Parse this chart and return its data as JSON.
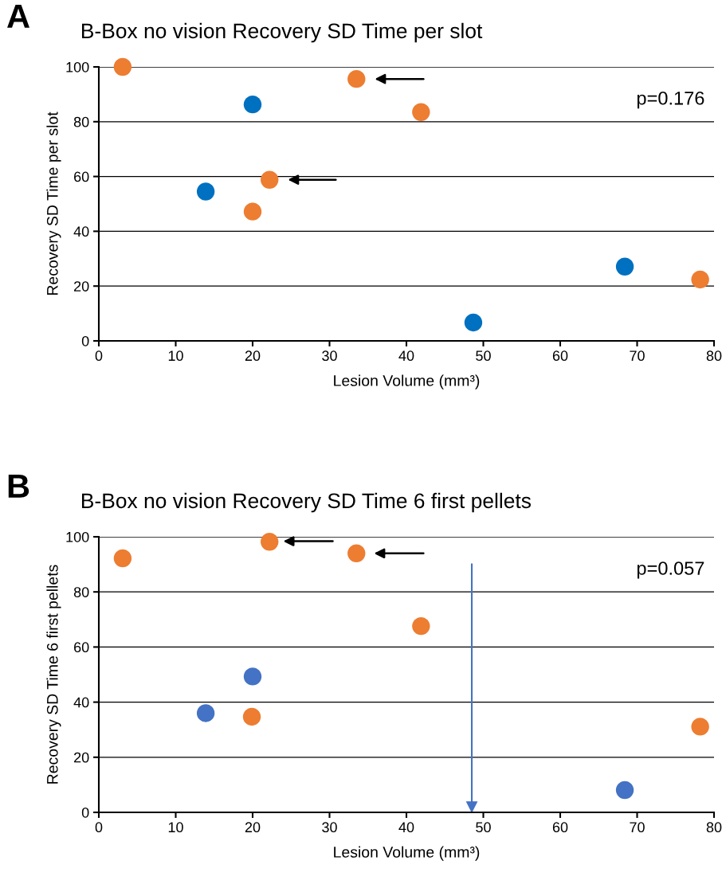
{
  "chart_data": [
    {
      "type": "scatter",
      "title": "B-Box no vision Recovery SD Time per slot",
      "xlabel": "Lesion Volume (mm³)",
      "ylabel": "Recovery SD Time per slot",
      "xlim": [
        0,
        80
      ],
      "xticks": [
        0,
        10,
        20,
        30,
        40,
        50,
        60,
        70,
        80
      ],
      "ylim": [
        0,
        100
      ],
      "yticks": [
        0,
        20,
        40,
        60,
        80,
        100
      ],
      "grid": "y",
      "marker": "circle",
      "series": [
        {
          "color": "#ed7d31",
          "x": [
            3.1,
            33.5,
            41.9,
            22.2,
            20.0,
            78.2
          ],
          "values": [
            100,
            95.6,
            83.5,
            58.8,
            47.2,
            22.4
          ]
        },
        {
          "color": "#0070c0",
          "x": [
            20.0,
            13.9,
            48.7,
            68.4
          ],
          "values": [
            86.3,
            54.5,
            6.7,
            27.1
          ]
        }
      ],
      "annotations": [
        "A",
        "p=0.176"
      ]
    },
    {
      "type": "scatter",
      "title": "B-Box no vision Recovery SD Time 6 first pellets",
      "xlabel": "Lesion Volume (mm³)",
      "ylabel": "Recovery SD Time 6 first pellets",
      "xlim": [
        0,
        80
      ],
      "xticks": [
        0,
        10,
        20,
        30,
        40,
        50,
        60,
        70,
        80
      ],
      "ylim": [
        0,
        100
      ],
      "yticks": [
        0,
        20,
        40,
        60,
        80,
        100
      ],
      "grid": "y",
      "marker": "circle",
      "series": [
        {
          "color": "#ed7d31",
          "x": [
            3.1,
            22.2,
            33.5,
            41.9,
            19.9,
            78.2
          ],
          "values": [
            92.2,
            98.2,
            94,
            67.6,
            34.7,
            31.1
          ]
        },
        {
          "color": "#4472c4",
          "x": [
            13.9,
            20.0,
            68.4
          ],
          "values": [
            36,
            49.3,
            8.1
          ]
        }
      ],
      "ref_lines": [
        {
          "axis": "x",
          "value": 48.5,
          "color": "#4472c4"
        }
      ],
      "annotations": [
        "B",
        "p=0.057"
      ]
    }
  ]
}
